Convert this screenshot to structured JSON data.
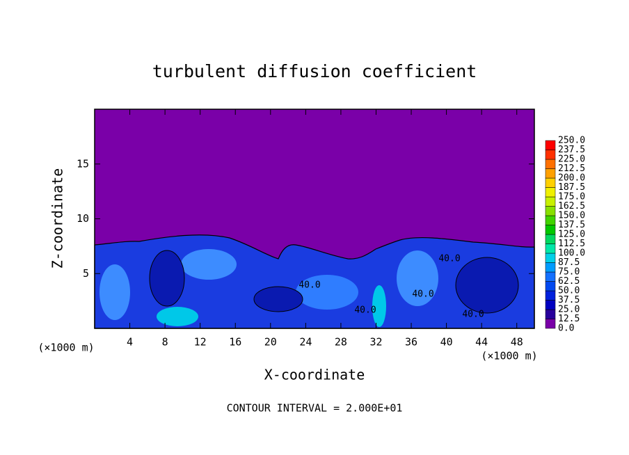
{
  "chart_data": {
    "type": "contour",
    "title": "turbulent diffusion coefficient",
    "x_label": "X-coordinate",
    "y_label": "Z-coordinate",
    "x_unit": "(×1000 m)",
    "y_unit": "(×1000 m)",
    "footer": "CONTOUR INTERVAL = 2.000E+01",
    "xlim": [
      0,
      50
    ],
    "xticks": [
      4,
      8,
      12,
      16,
      20,
      24,
      28,
      32,
      36,
      40,
      44,
      48
    ],
    "ylim": [
      0,
      20
    ],
    "yticks": [
      5,
      10,
      15
    ],
    "contour_labels": [
      "40.0",
      "40.0",
      "40.0",
      "40.0",
      "40.0"
    ],
    "levels": [
      {
        "value": 0,
        "label": "0.0"
      },
      12.5,
      {
        "value": 25,
        "label": "25.0"
      },
      37.5,
      {
        "value": 50,
        "label": "50.0"
      },
      62.5,
      {
        "value": 75,
        "label": "75.0"
      },
      87.5,
      {
        "value": 100,
        "label": "100.0"
      },
      112.5,
      {
        "value": 125,
        "label": "125.0"
      },
      137.5,
      {
        "value": 150,
        "label": "150.0"
      },
      162.5,
      {
        "value": 175,
        "label": "175.0"
      },
      187.5,
      {
        "value": 200,
        "label": "200.0"
      },
      212.5,
      {
        "value": 225,
        "label": "225.0"
      },
      237.5,
      {
        "value": 250,
        "label": "250.0"
      }
    ],
    "colors": [
      "#7a00a8",
      "#28009c",
      "#0000c0",
      "#0020dc",
      "#0048f0",
      "#1470ff",
      "#009cff",
      "#00d0e8",
      "#00e8a8",
      "#00d860",
      "#00c800",
      "#40d400",
      "#88e000",
      "#c8f000",
      "#f0f000",
      "#ffd000",
      "#ffa000",
      "#ff7000",
      "#ff3000",
      "#ff0000",
      "#ff8080"
    ]
  }
}
